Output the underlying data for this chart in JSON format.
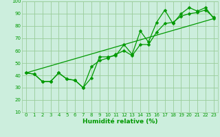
{
  "xlabel": "Humidité relative (%)",
  "bg_color": "#cceedd",
  "grid_color": "#99cc99",
  "line_color": "#009900",
  "xlim": [
    -0.5,
    23.5
  ],
  "ylim": [
    10,
    100
  ],
  "yticks": [
    10,
    20,
    30,
    40,
    50,
    60,
    70,
    80,
    90,
    100
  ],
  "xticks": [
    0,
    1,
    2,
    3,
    4,
    5,
    6,
    7,
    8,
    9,
    10,
    11,
    12,
    13,
    14,
    15,
    16,
    17,
    18,
    19,
    20,
    21,
    22,
    23
  ],
  "series1": [
    42,
    41,
    35,
    35,
    42,
    37,
    36,
    30,
    38,
    55,
    55,
    56,
    65,
    57,
    76,
    67,
    83,
    93,
    82,
    90,
    95,
    92,
    95,
    86
  ],
  "series2": [
    42,
    41,
    35,
    35,
    42,
    37,
    36,
    30,
    47,
    52,
    54,
    57,
    60,
    56,
    65,
    65,
    75,
    82,
    83,
    88,
    90,
    91,
    93,
    87
  ],
  "series3_x": [
    0,
    23
  ],
  "series3_y": [
    42,
    86
  ],
  "markersize": 2.5,
  "linewidth": 0.9,
  "xlabel_fontsize": 6.5,
  "tick_fontsize": 5.0
}
